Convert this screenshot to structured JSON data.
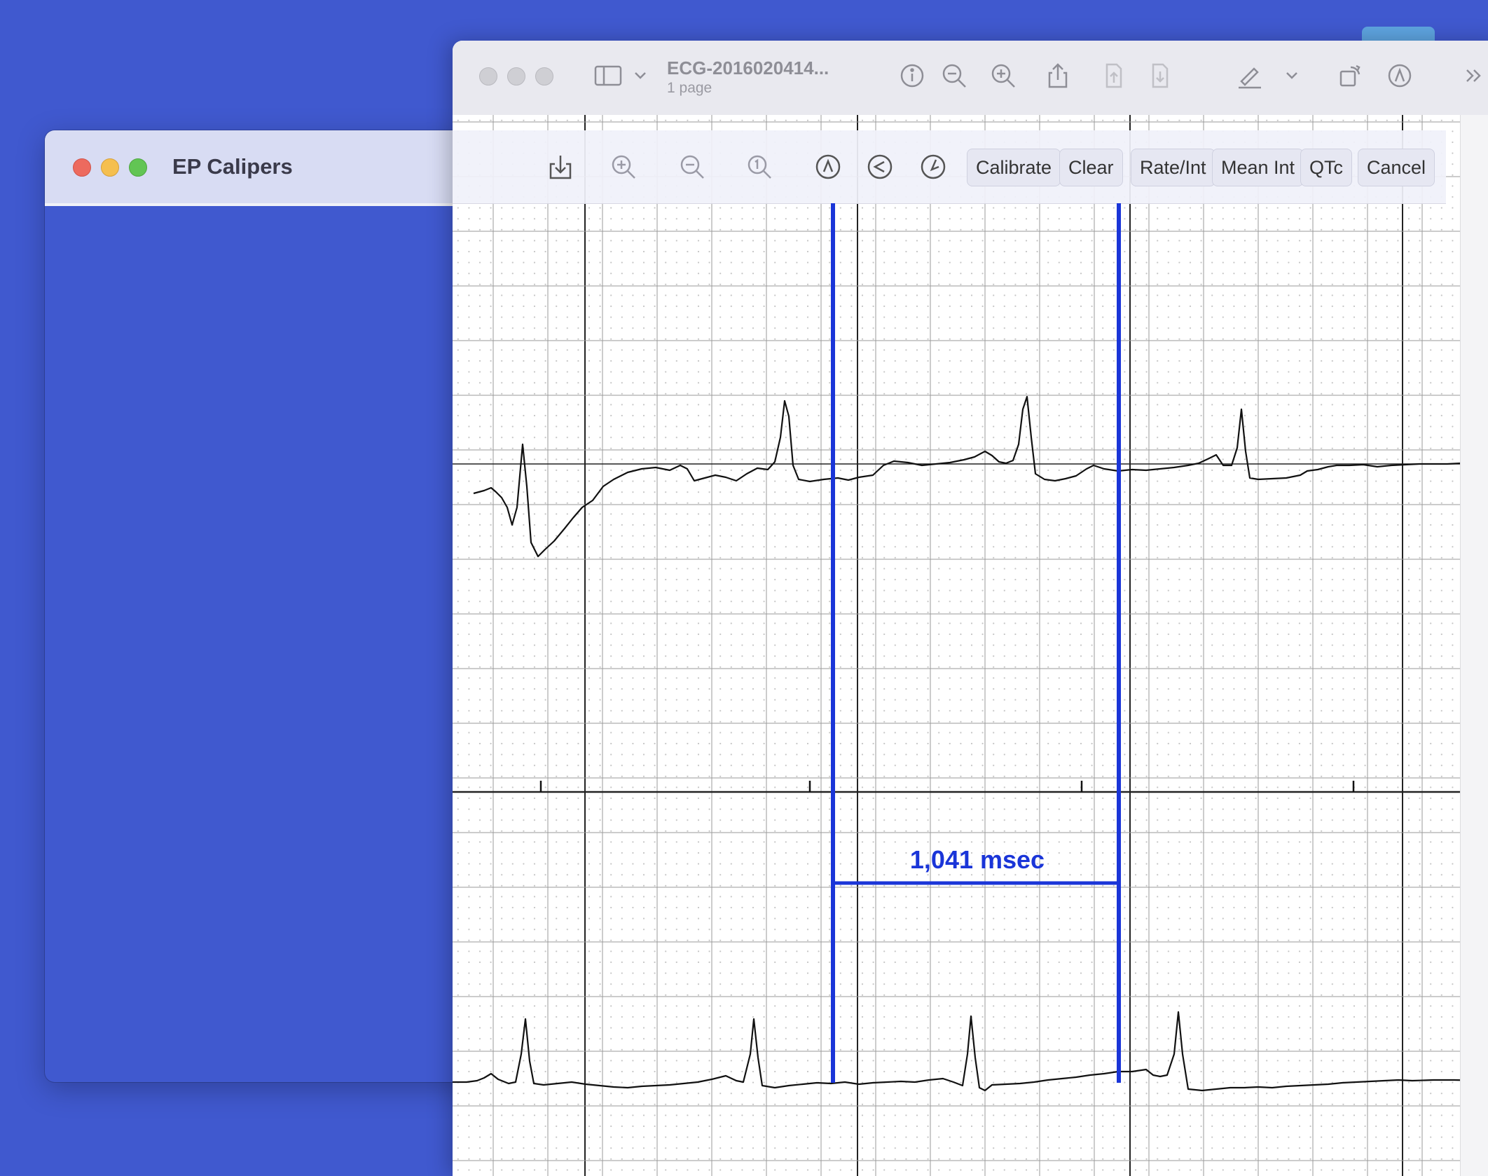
{
  "ep_window": {
    "title": "EP Calipers"
  },
  "preview": {
    "doc_title": "ECG-2016020414...",
    "page_count": "1 page"
  },
  "calipers_toolbar": {
    "buttons": [
      "Calibrate",
      "Clear",
      "Rate/Int",
      "Mean Int",
      "QTc",
      "Cancel"
    ],
    "icons": [
      "save-icon",
      "zoom-in-icon",
      "zoom-out-icon",
      "actual-size-icon",
      "time-caliper-icon",
      "amplitude-caliper-icon",
      "angle-caliper-icon"
    ]
  },
  "preview_toolbar_icons": [
    "sidebar-icon",
    "chevron-down-icon",
    "info-icon",
    "zoom-out-icon",
    "zoom-in-icon",
    "share-icon",
    "page-up-icon",
    "page-down-icon",
    "highlight-pen-icon",
    "chevron-down-icon",
    "rotate-icon",
    "markup-icon",
    "more-icon"
  ],
  "measurement": {
    "value": "1,041 msec",
    "color": "#1a35d8"
  },
  "colors": {
    "desktop": "#4059cf",
    "caliper": "#1a35d8",
    "ecg_trace": "#111111",
    "grid_minor": "#c8c8c8",
    "grid_major": "#777777"
  }
}
